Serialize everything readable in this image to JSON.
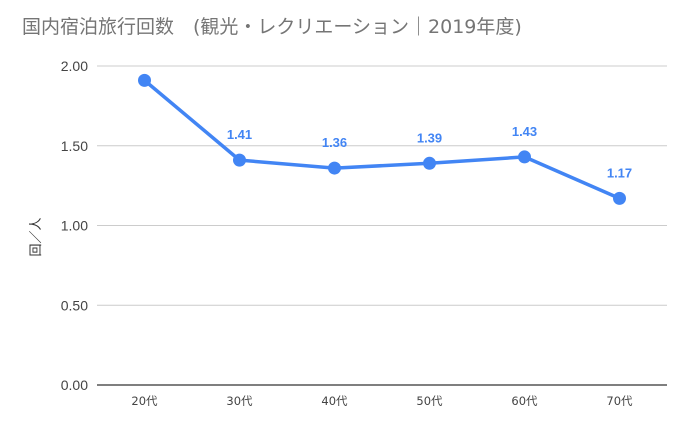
{
  "chart_data": {
    "type": "line",
    "title": "国内宿泊旅行回数　(観光・レクリエーション｜2019年度)",
    "ylabel": "回／人",
    "xlabel": "",
    "categories": [
      "20代",
      "30代",
      "40代",
      "50代",
      "60代",
      "70代"
    ],
    "series": [
      {
        "values": [
          1.91,
          1.41,
          1.36,
          1.39,
          1.43,
          1.17
        ],
        "data_labels": [
          "",
          "1.41",
          "1.36",
          "1.39",
          "1.43",
          "1.17"
        ],
        "color": "#4285f4"
      }
    ],
    "ylim": [
      0,
      2
    ],
    "yticks": [
      "0.00",
      "0.50",
      "1.00",
      "1.50",
      "2.00"
    ],
    "ytick_values": [
      0,
      0.5,
      1,
      1.5,
      2
    ],
    "grid": true,
    "legend": "none"
  }
}
